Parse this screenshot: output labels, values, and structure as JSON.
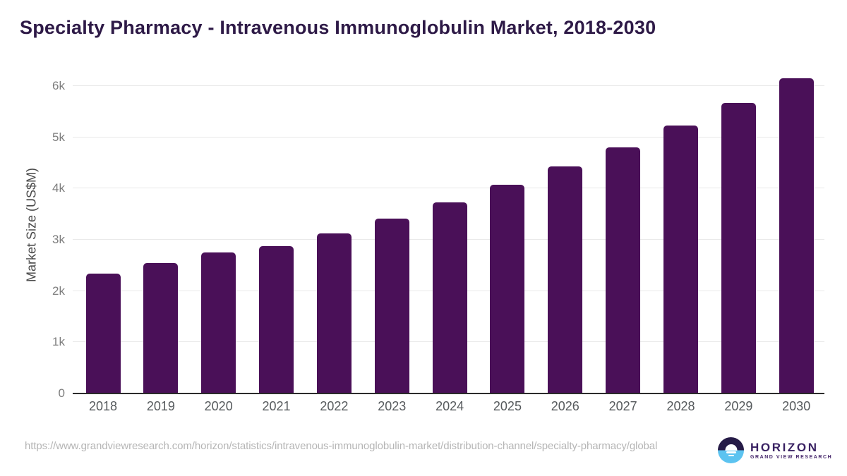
{
  "title": "Specialty Pharmacy - Intravenous Immunoglobulin Market, 2018-2030",
  "chart_data": {
    "type": "bar",
    "title": "Specialty Pharmacy - Intravenous Immunoglobulin Market, 2018-2030",
    "categories": [
      "2018",
      "2019",
      "2020",
      "2021",
      "2022",
      "2023",
      "2024",
      "2025",
      "2026",
      "2027",
      "2028",
      "2029",
      "2030"
    ],
    "values": [
      2330,
      2530,
      2740,
      2860,
      3110,
      3400,
      3710,
      4060,
      4410,
      4790,
      5220,
      5660,
      6140
    ],
    "xlabel": "",
    "ylabel": "Market Size (US$M)",
    "ylim": [
      0,
      6000
    ],
    "y_ticks": [
      {
        "label": "0",
        "value": 0
      },
      {
        "label": "1k",
        "value": 1000
      },
      {
        "label": "2k",
        "value": 2000
      },
      {
        "label": "3k",
        "value": 3000
      },
      {
        "label": "4k",
        "value": 4000
      },
      {
        "label": "5k",
        "value": 5000
      },
      {
        "label": "6k",
        "value": 6000
      }
    ],
    "grid": "horizontal",
    "legend": "none",
    "bar_color": "#4a1058"
  },
  "colors": {
    "title_text": "#2e1a47",
    "bar_fill": "#4a1058",
    "gridline": "#e9e9e9",
    "axis_line": "#2b2b2b",
    "y_tick_text": "#7d7d7d",
    "x_tick_text": "#565a5d",
    "url_text": "#b5b5b5",
    "logo_dark": "#261b47",
    "logo_blue": "#5cc3f0"
  },
  "footer": {
    "source_url": "https://www.grandviewresearch.com/horizon/statistics/intravenous-immunoglobulin-market/distribution-channel/specialty-pharmacy/global",
    "logo": {
      "name": "HORIZON",
      "subtitle": "GRAND VIEW RESEARCH"
    }
  }
}
